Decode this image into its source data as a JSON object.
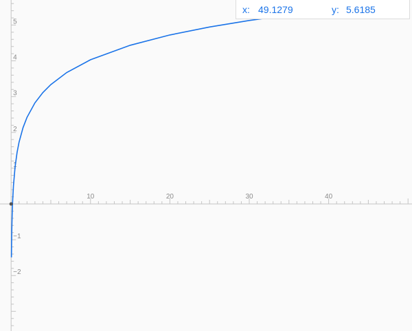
{
  "readout": {
    "x_label": "x:",
    "x_value": "49.1279",
    "y_label": "y:",
    "y_value": "5.6185"
  },
  "chart_data": {
    "type": "line",
    "function": "ln(x) + 1.727",
    "series": [
      {
        "x": [
          0.178,
          0.2,
          0.3,
          0.5,
          0.75,
          1,
          1.5,
          2,
          3,
          4,
          5,
          7,
          10,
          15,
          20,
          25,
          30,
          35,
          40,
          45,
          49.1279,
          50
        ],
        "values": [
          0.0,
          0.118,
          0.523,
          1.034,
          1.439,
          1.727,
          2.132,
          2.42,
          2.826,
          3.113,
          3.336,
          3.673,
          4.03,
          4.435,
          4.723,
          4.946,
          5.128,
          5.282,
          5.416,
          5.534,
          5.6185,
          5.639
        ]
      }
    ],
    "xlim": [
      -1.4,
      50.5
    ],
    "ylim": [
      -3.55,
      5.7
    ],
    "x_ticks": [
      10,
      20,
      30,
      40
    ],
    "y_ticks": [
      -2,
      -1,
      1,
      2,
      3,
      4,
      5
    ],
    "marker": {
      "x": 49.1279,
      "y": 5.6185
    },
    "grid": false,
    "colors": {
      "line": "#1a73e8",
      "marker": "#1a73e8",
      "axis": "#c4c4c4"
    }
  }
}
